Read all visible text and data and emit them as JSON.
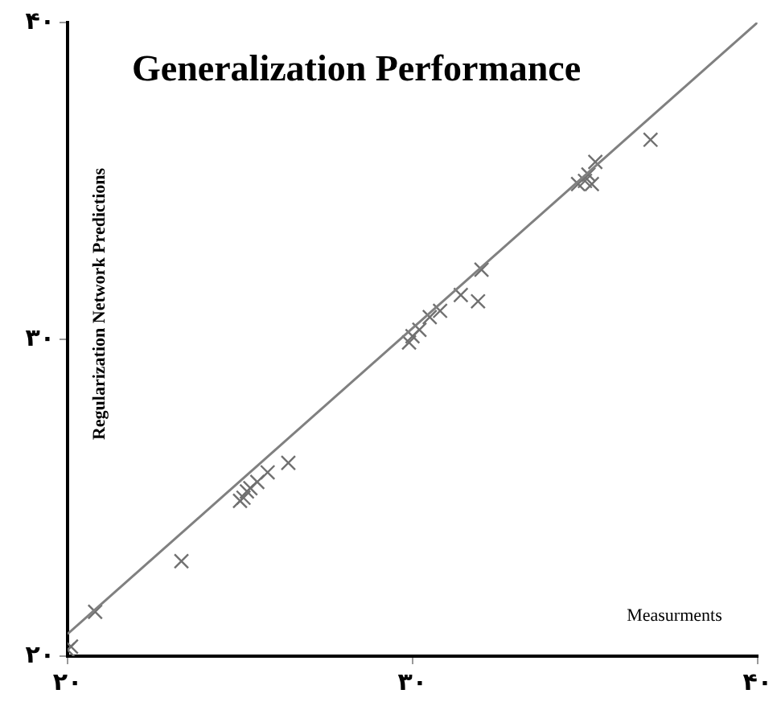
{
  "chart_data": {
    "type": "scatter",
    "title": "Generalization Performance",
    "xlabel": "Measurments",
    "ylabel": "Regularization Network Predictions",
    "xlim": [
      20,
      40
    ],
    "ylim": [
      20,
      40
    ],
    "xticks": [
      {
        "value": 20,
        "label": "۲۰"
      },
      {
        "value": 30,
        "label": "۳۰"
      },
      {
        "value": 40,
        "label": "۴۰"
      }
    ],
    "yticks": [
      {
        "value": 20,
        "label": "۲۰"
      },
      {
        "value": 30,
        "label": "۳۰"
      },
      {
        "value": 40,
        "label": "۴۰"
      }
    ],
    "grid": false,
    "legend": false,
    "marker": "cross",
    "series": [
      {
        "color": "#707070",
        "x": [
          20,
          20.1,
          20.8,
          23.3,
          25.0,
          25.1,
          25.2,
          25.3,
          25.5,
          25.8,
          26.4,
          29.9,
          30.0,
          30.2,
          30.5,
          30.8,
          31.4,
          31.9,
          32.0,
          34.8,
          35.0,
          35.1,
          35.2,
          35.3,
          36.9
        ],
        "values": [
          20.2,
          20.3,
          21.4,
          23.0,
          24.9,
          25.0,
          25.2,
          25.3,
          25.5,
          25.8,
          26.1,
          29.9,
          30.1,
          30.3,
          30.7,
          30.9,
          31.4,
          31.2,
          32.2,
          34.9,
          35.0,
          35.2,
          34.9,
          35.6,
          36.3
        ]
      },
      {
        "type": "line",
        "color": "#808080",
        "marker": "none",
        "x": [
          20,
          40
        ],
        "values": [
          20.7,
          40
        ]
      }
    ]
  }
}
